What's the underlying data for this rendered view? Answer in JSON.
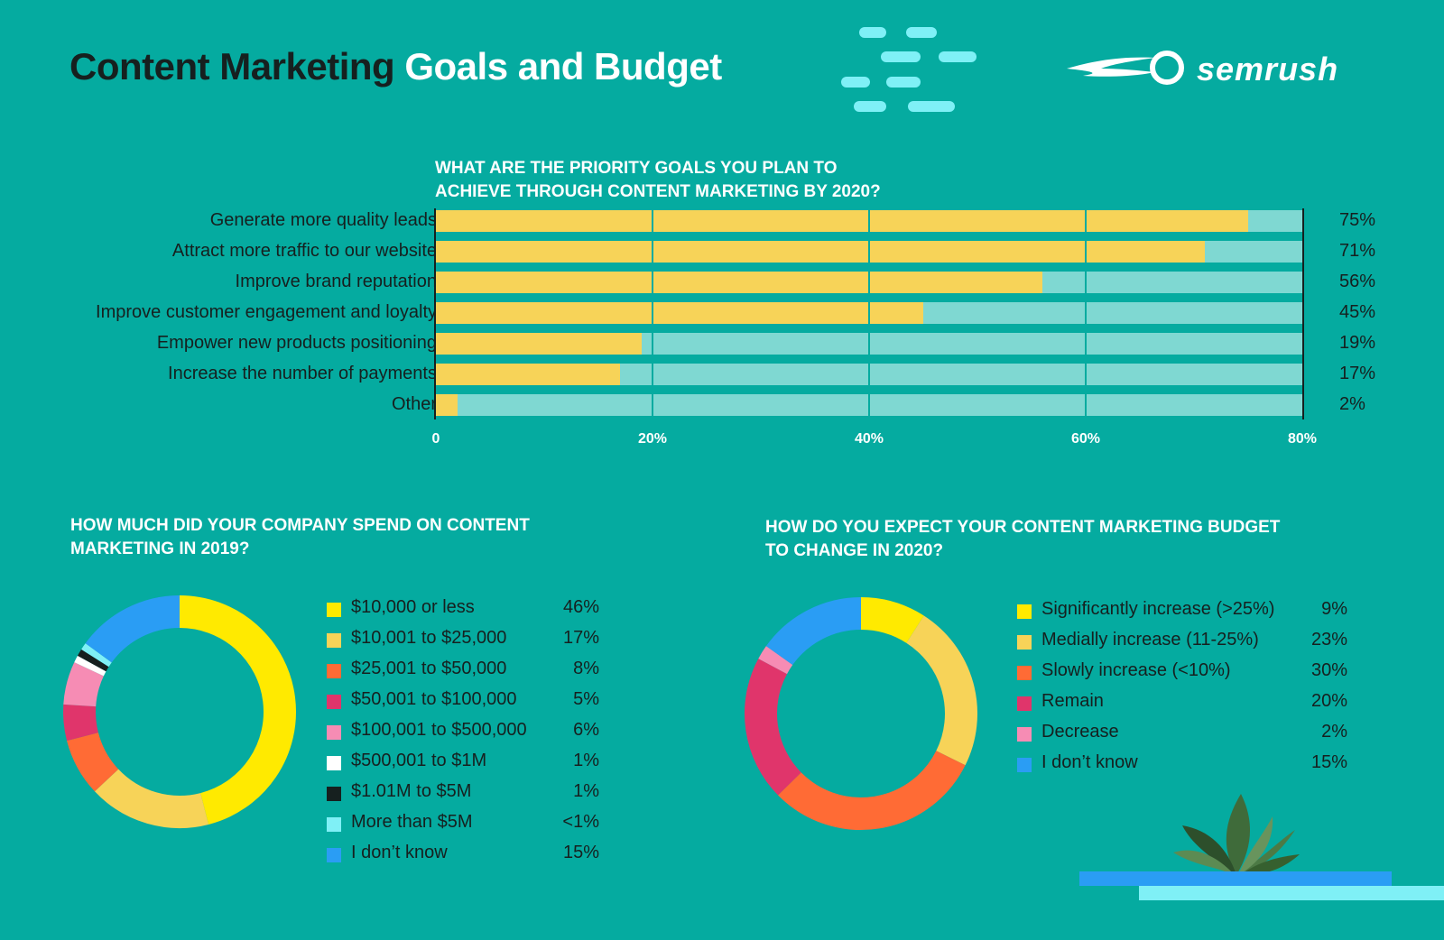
{
  "title": {
    "part1": "Content Marketing",
    "part2": "Goals and Budget"
  },
  "brand": {
    "name": "semrush"
  },
  "colors": {
    "background": "#05aba0",
    "bar_fill": "#f7d358",
    "bar_track": "#7fd8d2",
    "dark_text": "#16201f",
    "accent_cyan": "#7ff0f6",
    "accent_blue": "#2a9df4"
  },
  "chart_data": [
    {
      "type": "bar",
      "orientation": "horizontal",
      "title": "What are the priority goals you plan to achieve through content marketing by 2020?",
      "title_lines": [
        "WHAT ARE THE PRIORITY GOALS YOU PLAN TO",
        "ACHIEVE THROUGH CONTENT MARKETING BY 2020?"
      ],
      "categories": [
        "Generate more quality leads",
        "Attract more traffic to our website",
        "Improve brand reputation",
        "Improve customer engagement and loyalty",
        "Empower new products positioning",
        "Increase the number of payments",
        "Other"
      ],
      "values": [
        75,
        71,
        56,
        45,
        19,
        17,
        2
      ],
      "value_labels": [
        "75%",
        "71%",
        "56%",
        "45%",
        "19%",
        "17%",
        "2%"
      ],
      "xlim": [
        0,
        80
      ],
      "x_ticks": [
        0,
        20,
        40,
        60,
        80
      ],
      "x_tick_labels": [
        "0",
        "20%",
        "40%",
        "60%",
        "80%"
      ],
      "xlabel": "",
      "ylabel": "",
      "grid": true
    },
    {
      "type": "pie",
      "donut": true,
      "title": "How much did your company spend on content marketing in 2019?",
      "title_lines": [
        "HOW MUCH DID YOUR COMPANY SPEND ON CONTENT",
        "MARKETING IN 2019?"
      ],
      "slices": [
        {
          "label": "$10,000 or less",
          "pct_label": "46%",
          "value": 46,
          "color": "#ffea00"
        },
        {
          "label": "$10,001 to $25,000",
          "pct_label": "17%",
          "value": 17,
          "color": "#f7d358"
        },
        {
          "label": "$25,001 to $50,000",
          "pct_label": "8%",
          "value": 8,
          "color": "#ff6b35"
        },
        {
          "label": "$50,001 to $100,000",
          "pct_label": "5%",
          "value": 5,
          "color": "#e0356b"
        },
        {
          "label": "$100,001 to $500,000",
          "pct_label": "6%",
          "value": 6,
          "color": "#f68cb4"
        },
        {
          "label": "$500,001 to $1M",
          "pct_label": "1%",
          "value": 1,
          "color": "#ffffff"
        },
        {
          "label": "$1.01M to $5M",
          "pct_label": "1%",
          "value": 1,
          "color": "#16201f"
        },
        {
          "label": "More than $5M",
          "pct_label": "<1%",
          "value": 1,
          "color": "#7ff0f6"
        },
        {
          "label": "I don’t know",
          "pct_label": "15%",
          "value": 15,
          "color": "#2a9df4"
        }
      ]
    },
    {
      "type": "pie",
      "donut": true,
      "title": "How do you expect your content marketing budget to change in 2020?",
      "title_lines": [
        "HOW DO YOU EXPECT YOUR CONTENT MARKETING BUDGET",
        "TO CHANGE IN 2020?"
      ],
      "slices": [
        {
          "label": "Significantly increase (>25%)",
          "pct_label": "9%",
          "value": 9,
          "color": "#ffea00"
        },
        {
          "label": "Medially increase (11-25%)",
          "pct_label": "23%",
          "value": 23,
          "color": "#f7d358"
        },
        {
          "label": "Slowly increase (<10%)",
          "pct_label": "30%",
          "value": 30,
          "color": "#ff6b35"
        },
        {
          "label": "Remain",
          "pct_label": "20%",
          "value": 20,
          "color": "#e0356b"
        },
        {
          "label": "Decrease",
          "pct_label": "2%",
          "value": 2,
          "color": "#f68cb4"
        },
        {
          "label": "I don’t know",
          "pct_label": "15%",
          "value": 15,
          "color": "#2a9df4"
        }
      ]
    }
  ]
}
